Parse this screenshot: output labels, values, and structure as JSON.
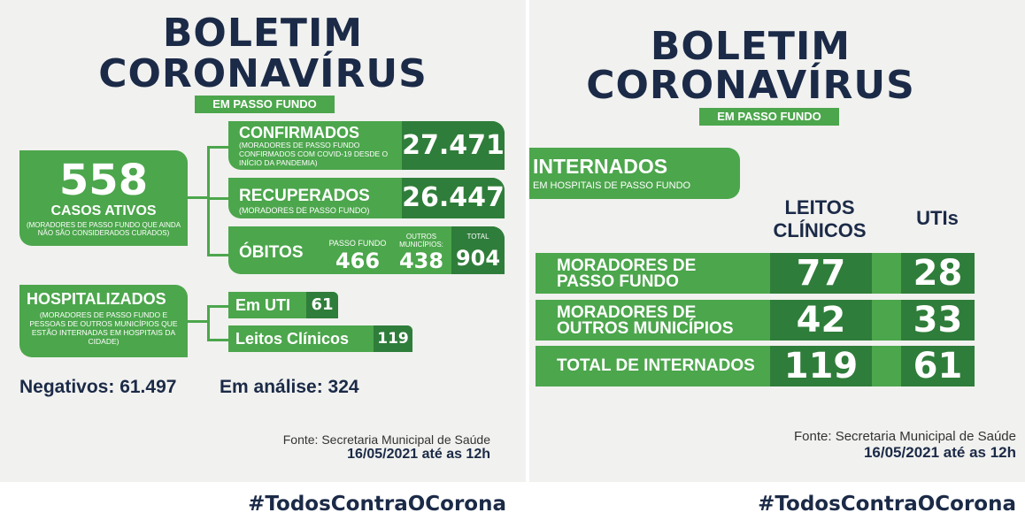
{
  "left": {
    "title_line1": "BOLETIM",
    "title_line2": "CORONAVÍRUS",
    "subtitle": "EM PASSO FUNDO",
    "ativos": {
      "number": "558",
      "label": "CASOS ATIVOS",
      "note": "(MORADORES DE PASSO FUNDO QUE AINDA NÃO SÃO CONSIDERADOS CURADOS)"
    },
    "confirmados": {
      "label": "CONFIRMADOS",
      "note": "(MORADORES DE PASSO FUNDO CONFIRMADOS COM COVID-19 DESDE O INÍCIO DA PANDEMIA)",
      "value": "27.471"
    },
    "recuperados": {
      "label": "RECUPERADOS",
      "note": "(MORADORES DE PASSO FUNDO)",
      "value": "26.447"
    },
    "obitos": {
      "label": "ÓBITOS",
      "pf_label": "PASSO FUNDO",
      "pf_value": "466",
      "outros_label": "OUTROS MUNICÍPIOS:",
      "outros_value": "438",
      "total_label": "TOTAL",
      "total_value": "904"
    },
    "hospitalizados": {
      "label": "HOSPITALIZADOS",
      "note": "(MORADORES DE PASSO FUNDO E PESSOAS DE OUTROS MUNICÍPIOS QUE ESTÃO INTERNADAS EM HOSPITAIS DA CIDADE)"
    },
    "uti": {
      "label": "Em UTI",
      "value": "61"
    },
    "leitos": {
      "label": "Leitos Clínicos",
      "value": "119"
    },
    "negativos": "Negativos: 61.497",
    "analise": "Em análise: 324",
    "fonte": "Fonte: Secretaria Municipal de Saúde",
    "data": "16/05/2021 até as 12h",
    "hashtag": "#TodosContraOCorona"
  },
  "right": {
    "title_line1": "BOLETIM",
    "title_line2": "CORONAVÍRUS",
    "subtitle": "EM PASSO FUNDO",
    "internados_label": "INTERNADOS",
    "internados_note": "EM HOSPITAIS DE PASSO FUNDO",
    "col_leitos_1": "LEITOS",
    "col_leitos_2": "CLÍNICOS",
    "col_utis": "UTIs",
    "rows": [
      {
        "line1": "MORADORES DE",
        "line2": "PASSO FUNDO",
        "leitos": "77",
        "utis": "28"
      },
      {
        "line1": "MORADORES DE",
        "line2": "OUTROS MUNICÍPIOS",
        "leitos": "42",
        "utis": "33"
      },
      {
        "line1": "TOTAL DE INTERNADOS",
        "line2": "",
        "leitos": "119",
        "utis": "61"
      }
    ],
    "fonte": "Fonte: Secretaria Municipal de Saúde",
    "data": "16/05/2021 até as 12h",
    "hashtag": "#TodosContraOCorona"
  },
  "colors": {
    "green": "#4ca64c",
    "dark_green": "#2f7d3a",
    "navy": "#1b2a47",
    "background": "#f1f1ef"
  }
}
